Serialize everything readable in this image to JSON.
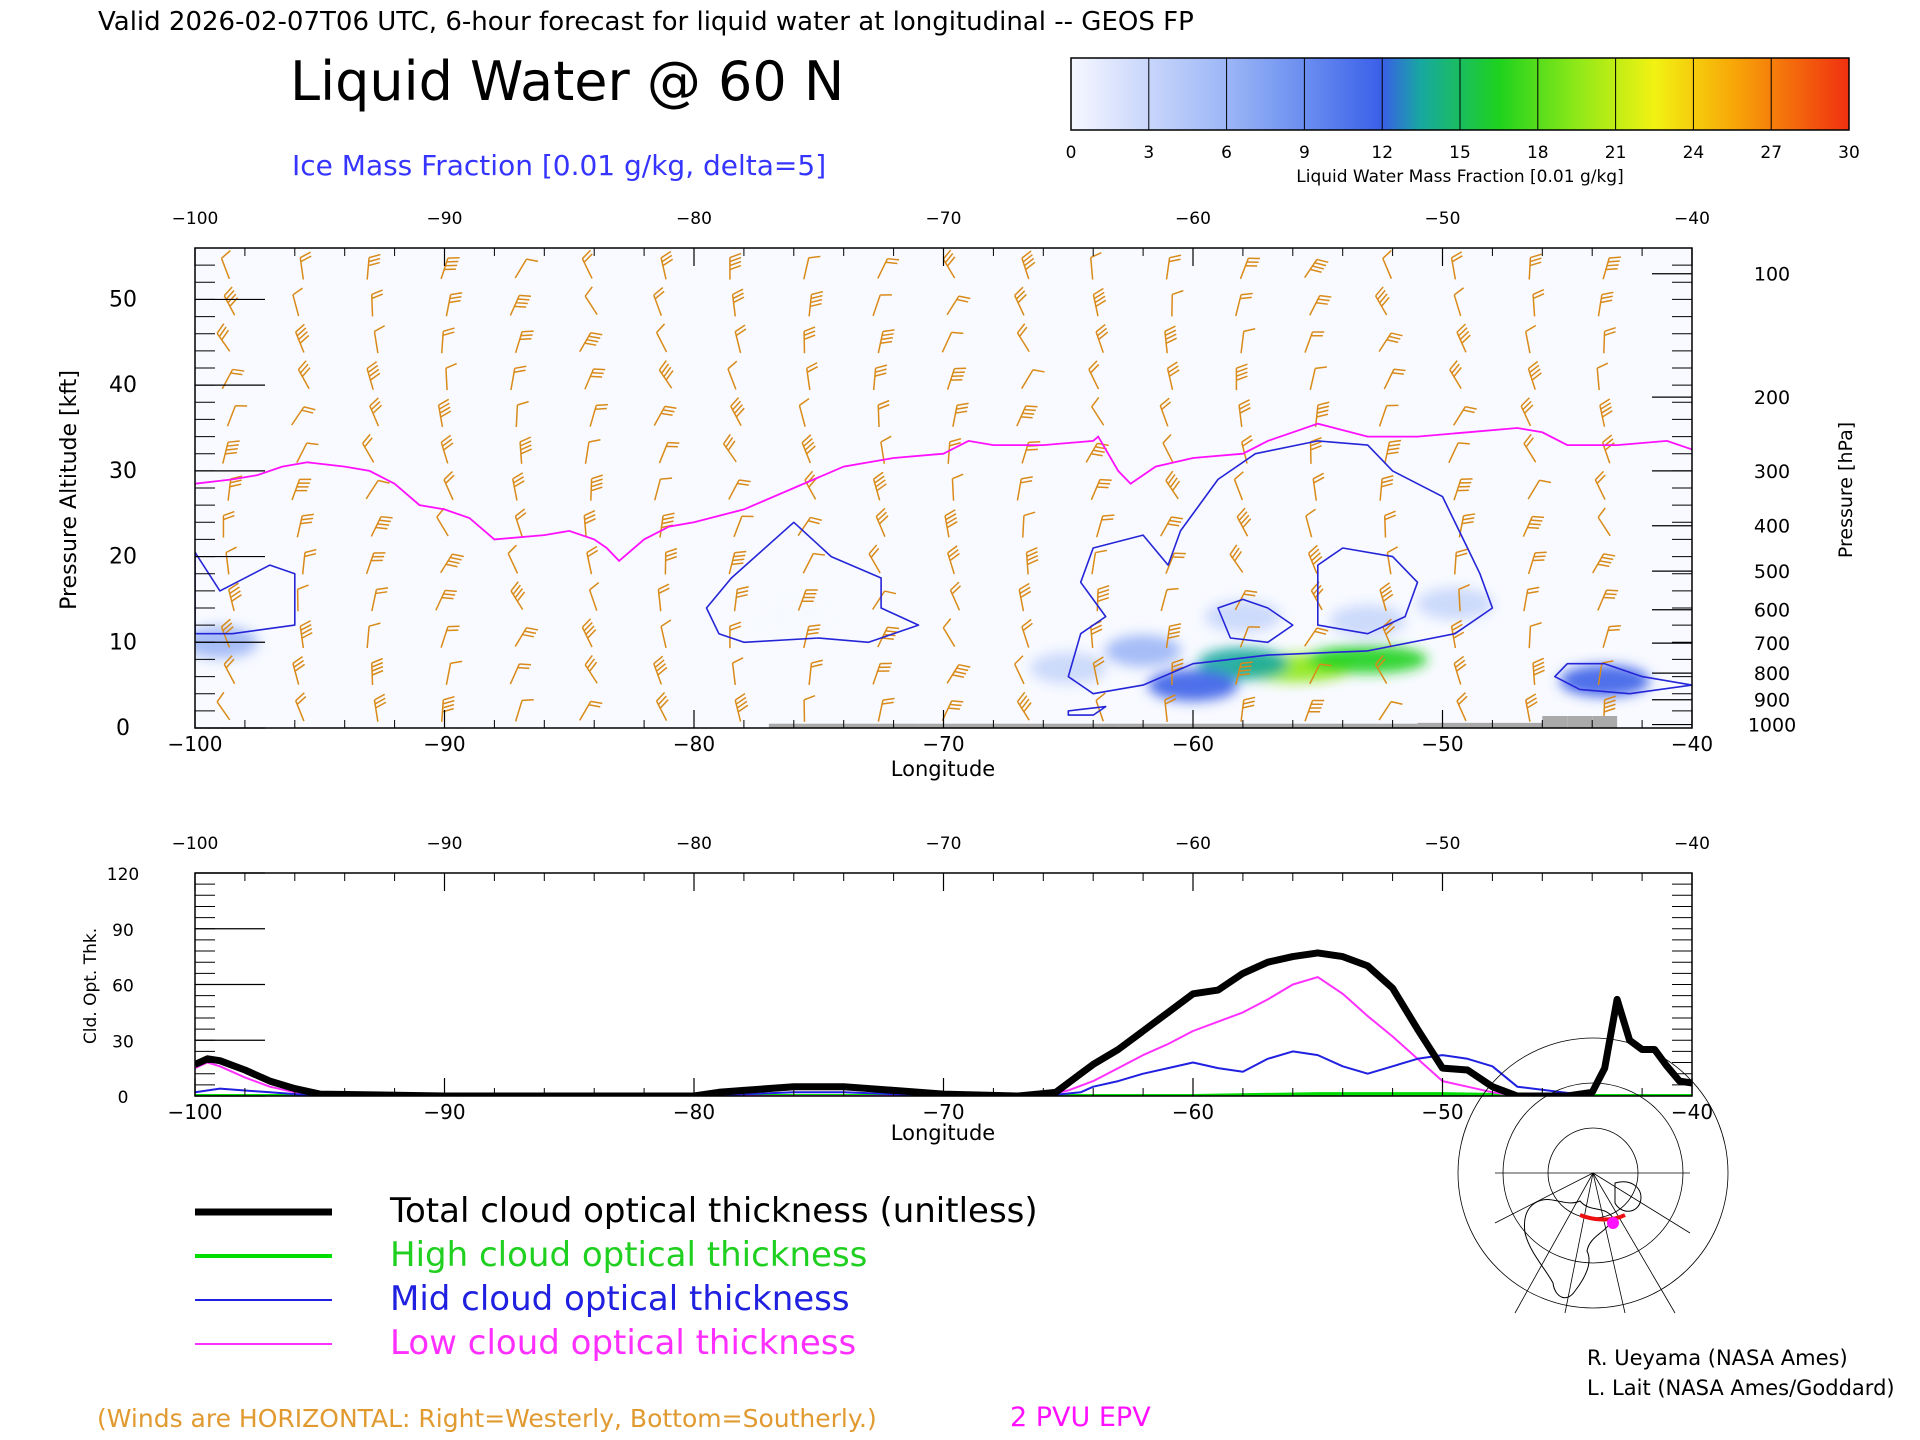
{
  "header": {
    "valid_line": "Valid 2026-02-07T06 UTC, 6-hour forecast for liquid water at longitudinal -- GEOS FP",
    "title": "Liquid Water @ 60 N",
    "ice_label": "Ice Mass Fraction [0.01 g/kg, delta=5]"
  },
  "colorbar": {
    "ticks": [
      "0",
      "3",
      "6",
      "9",
      "12",
      "15",
      "18",
      "21",
      "24",
      "27",
      "30"
    ],
    "label": "Liquid Water Mass Fraction [0.01 g/kg]",
    "colors": [
      "#f6f8ff",
      "#c8d6fb",
      "#9cb6f6",
      "#6a8ef0",
      "#3a5fe8",
      "#17a8a0",
      "#1ed21e",
      "#8ee818",
      "#f2f212",
      "#f8a808",
      "#f03010"
    ]
  },
  "footer": {
    "winds_note": "(Winds are HORIZONTAL: Right=Westerly, Bottom=Southerly.)",
    "epv_label": "2 PVU EPV"
  },
  "credits": [
    "R. Ueyama (NASA Ames)",
    "L. Lait (NASA Ames/Goddard)"
  ],
  "legend": [
    {
      "label": "Total cloud optical thickness (unitless)",
      "color": "#000000",
      "width": 7
    },
    {
      "label": "High cloud optical thickness",
      "color": "#00dd00",
      "width": 4
    },
    {
      "label": "Mid cloud optical thickness",
      "color": "#2020e0",
      "width": 2
    },
    {
      "label": "Low cloud optical thickness",
      "color": "#ff30ff",
      "width": 2
    }
  ],
  "chart_data": [
    {
      "type": "heatmap",
      "title": "Liquid Water @ 60 N",
      "xlabel": "Longitude",
      "ylabel": "Pressure Altitude [kft]",
      "y2label": "Pressure [hPa]",
      "xlim": [
        -100,
        -40
      ],
      "ylim": [
        0,
        56
      ],
      "xticks": [
        -100,
        -90,
        -80,
        -70,
        -60,
        -50,
        -40
      ],
      "yticks": [
        0,
        10,
        20,
        30,
        40,
        50
      ],
      "pressure_ticks": [
        {
          "hPa": 100,
          "kft": 53.0
        },
        {
          "hPa": 200,
          "kft": 38.6
        },
        {
          "hPa": 300,
          "kft": 30.0
        },
        {
          "hPa": 400,
          "kft": 23.6
        },
        {
          "hPa": 500,
          "kft": 18.3
        },
        {
          "hPa": 600,
          "kft": 13.8
        },
        {
          "hPa": 700,
          "kft": 9.9
        },
        {
          "hPa": 800,
          "kft": 6.4
        },
        {
          "hPa": 900,
          "kft": 3.3
        },
        {
          "hPa": 1000,
          "kft": 0.4
        }
      ],
      "liquid_water_blobs": [
        {
          "lon": -56.0,
          "kft": 7.0,
          "value": 22
        },
        {
          "lon": -53.0,
          "kft": 8.0,
          "value": 17
        },
        {
          "lon": -58.0,
          "kft": 7.5,
          "value": 15
        },
        {
          "lon": -60.0,
          "kft": 5.0,
          "value": 11
        },
        {
          "lon": -62.0,
          "kft": 9.0,
          "value": 6
        },
        {
          "lon": -58.0,
          "kft": 13.0,
          "value": 4
        },
        {
          "lon": -53.0,
          "kft": 12.5,
          "value": 4
        },
        {
          "lon": -49.5,
          "kft": 14.5,
          "value": 2
        },
        {
          "lon": -43.5,
          "kft": 5.5,
          "value": 13
        },
        {
          "lon": -99.0,
          "kft": 10.0,
          "value": 5
        },
        {
          "lon": -76.0,
          "kft": 13.0,
          "value": 1
        },
        {
          "lon": -65.0,
          "kft": 7.0,
          "value": 2
        }
      ],
      "ice_contours": [
        {
          "level": 5,
          "points": [
            [
              -100,
              20.5
            ],
            [
              -99,
              16
            ],
            [
              -97,
              19
            ],
            [
              -96,
              18
            ],
            [
              -96,
              12
            ],
            [
              -98.5,
              11
            ],
            [
              -100,
              11
            ]
          ]
        },
        {
          "level": 5,
          "points": [
            [
              -79.5,
              14
            ],
            [
              -78.5,
              17.5
            ],
            [
              -76,
              24
            ],
            [
              -74.5,
              20
            ],
            [
              -72.5,
              17.5
            ],
            [
              -72.5,
              14
            ],
            [
              -71,
              12
            ],
            [
              -73,
              10
            ],
            [
              -75,
              10.5
            ],
            [
              -78,
              10
            ],
            [
              -79,
              11
            ]
          ]
        },
        {
          "level": 5,
          "points": [
            [
              -64.5,
              17
            ],
            [
              -64,
              21
            ],
            [
              -62,
              22.5
            ],
            [
              -61,
              19
            ],
            [
              -60.5,
              23
            ],
            [
              -59,
              29
            ],
            [
              -57.5,
              32
            ],
            [
              -55,
              33.5
            ],
            [
              -53,
              33
            ],
            [
              -52,
              30
            ],
            [
              -50,
              27
            ],
            [
              -49,
              21
            ],
            [
              -48.5,
              18
            ],
            [
              -48,
              14
            ],
            [
              -49.5,
              11
            ],
            [
              -53,
              9
            ],
            [
              -57,
              8.5
            ],
            [
              -60,
              7.5
            ],
            [
              -62,
              5
            ],
            [
              -64,
              4
            ],
            [
              -65,
              6
            ],
            [
              -64.5,
              11
            ],
            [
              -63.5,
              13
            ]
          ]
        },
        {
          "level": 10,
          "points": [
            [
              -59,
              14
            ],
            [
              -58,
              15
            ],
            [
              -57,
              14
            ],
            [
              -56,
              12
            ],
            [
              -57,
              10
            ],
            [
              -58.5,
              10.5
            ]
          ]
        },
        {
          "level": 10,
          "points": [
            [
              -55,
              19
            ],
            [
              -54,
              21
            ],
            [
              -52,
              20
            ],
            [
              -51,
              17
            ],
            [
              -51.5,
              13
            ],
            [
              -53,
              11
            ],
            [
              -55,
              12
            ]
          ]
        },
        {
          "level": 5,
          "points": [
            [
              -45.5,
              6
            ],
            [
              -45,
              7.5
            ],
            [
              -43.5,
              7.5
            ],
            [
              -42,
              6
            ],
            [
              -40,
              5
            ],
            [
              -42.5,
              4
            ],
            [
              -44.5,
              4.5
            ]
          ]
        },
        {
          "level": 5,
          "points": [
            [
              -65,
              2
            ],
            [
              -63.5,
              2.5
            ],
            [
              -64,
              1.5
            ],
            [
              -65,
              1.5
            ]
          ]
        }
      ],
      "tropopause_epv_kft": [
        [
          -100,
          28.5
        ],
        [
          -98.5,
          29
        ],
        [
          -97.5,
          29.5
        ],
        [
          -96.5,
          30.5
        ],
        [
          -95.5,
          31
        ],
        [
          -94,
          30.5
        ],
        [
          -93,
          30
        ],
        [
          -92,
          28.5
        ],
        [
          -91,
          26
        ],
        [
          -90,
          25.5
        ],
        [
          -89,
          24.5
        ],
        [
          -88,
          22
        ],
        [
          -86,
          22.5
        ],
        [
          -85,
          23
        ],
        [
          -84,
          22
        ],
        [
          -83.5,
          21
        ],
        [
          -83,
          19.5
        ],
        [
          -82,
          22
        ],
        [
          -81,
          23.5
        ],
        [
          -80,
          24
        ],
        [
          -78,
          25.5
        ],
        [
          -76,
          28
        ],
        [
          -74,
          30.5
        ],
        [
          -72,
          31.5
        ],
        [
          -70,
          32
        ],
        [
          -69,
          33.5
        ],
        [
          -68,
          33
        ],
        [
          -66,
          33
        ],
        [
          -64,
          33.5
        ],
        [
          -63.8,
          34
        ],
        [
          -63,
          30
        ],
        [
          -62.5,
          28.5
        ],
        [
          -61.5,
          30.5
        ],
        [
          -60,
          31.5
        ],
        [
          -58,
          32
        ],
        [
          -57,
          33.5
        ],
        [
          -55,
          35.5
        ],
        [
          -53,
          34
        ],
        [
          -51,
          34
        ],
        [
          -49,
          34.5
        ],
        [
          -47,
          35
        ],
        [
          -46,
          34.5
        ],
        [
          -45,
          33
        ],
        [
          -43,
          33
        ],
        [
          -41,
          33.5
        ],
        [
          -40,
          32.5
        ]
      ],
      "surface_kft": [
        [
          -77,
          0.5
        ],
        [
          -71,
          0.5
        ],
        [
          -66,
          0.5
        ],
        [
          -64,
          0.5
        ],
        [
          -63,
          0.3
        ],
        [
          -60,
          0.5
        ],
        [
          -51,
          0.5
        ],
        [
          -46,
          0.6
        ],
        [
          -45,
          1.4
        ],
        [
          -44,
          1.4
        ],
        [
          -43,
          0.6
        ]
      ]
    },
    {
      "type": "line",
      "xlabel": "Longitude",
      "ylabel": "Cld. Opt. Thk.",
      "xlim": [
        -100,
        -40
      ],
      "ylim": [
        0,
        120
      ],
      "xticks": [
        -100,
        -90,
        -80,
        -70,
        -60,
        -50,
        -40
      ],
      "yticks": [
        0,
        30,
        60,
        90,
        120
      ],
      "series": [
        {
          "name": "Total cloud optical thickness (unitless)",
          "x": [
            -100,
            -99.5,
            -99,
            -98,
            -97,
            -96,
            -95,
            -90,
            -80,
            -79,
            -78,
            -76,
            -74,
            -72,
            -70,
            -67,
            -65.5,
            -64.5,
            -64,
            -63,
            -62,
            -61,
            -60,
            -59,
            -58,
            -57,
            -56,
            -55,
            -54,
            -53,
            -52,
            -51,
            -50,
            -49,
            -48,
            -47,
            -45,
            -44,
            -43.5,
            -43,
            -42.5,
            -42,
            -41.5,
            -41,
            -40.5,
            -40
          ],
          "y": [
            17,
            20,
            19,
            14,
            8,
            4,
            1,
            0,
            0,
            2,
            3,
            5,
            5,
            3,
            1,
            0,
            2,
            12,
            17,
            25,
            35,
            45,
            55,
            57,
            66,
            72,
            75,
            77,
            75,
            70,
            58,
            36,
            15,
            14,
            5,
            0,
            0,
            2,
            15,
            52,
            30,
            25,
            25,
            16,
            8,
            7
          ]
        },
        {
          "name": "High cloud optical thickness",
          "x": [
            -100,
            -90,
            -80,
            -70,
            -60,
            -55,
            -50,
            -45,
            -40
          ],
          "y": [
            0,
            0,
            0,
            0,
            0,
            1,
            1,
            0,
            0
          ]
        },
        {
          "name": "Mid cloud optical thickness",
          "x": [
            -100,
            -99,
            -97,
            -95,
            -90,
            -80,
            -76,
            -74,
            -70,
            -66,
            -64.5,
            -64,
            -63,
            -62,
            -61,
            -60,
            -59,
            -58,
            -57,
            -56,
            -55,
            -54,
            -53,
            -52,
            -51,
            -50,
            -49,
            -48,
            -47,
            -44,
            -43.5,
            -43,
            -42.5,
            -42,
            -41.5,
            -41,
            -40.5,
            -40
          ],
          "y": [
            2,
            4,
            2,
            0,
            0,
            0,
            2,
            2,
            0,
            0,
            2,
            5,
            8,
            12,
            15,
            18,
            15,
            13,
            20,
            24,
            22,
            16,
            12,
            16,
            20,
            22,
            20,
            16,
            5,
            0,
            15,
            52,
            30,
            25,
            25,
            16,
            8,
            7
          ]
        },
        {
          "name": "Low cloud optical thickness",
          "x": [
            -100,
            -99.5,
            -99,
            -98,
            -97,
            -96,
            -95,
            -90,
            -80,
            -70,
            -66,
            -65,
            -64,
            -63,
            -62,
            -61,
            -60,
            -59,
            -58,
            -57,
            -56,
            -55,
            -54,
            -53,
            -52,
            -51,
            -50,
            -49,
            -48,
            -47,
            -44,
            -43.5,
            -43,
            -42.5,
            -42,
            -41.5,
            -41,
            -40.5,
            -40
          ],
          "y": [
            15,
            18,
            16,
            10,
            5,
            2,
            0,
            0,
            0,
            0,
            0,
            3,
            8,
            15,
            22,
            28,
            35,
            40,
            45,
            52,
            60,
            64,
            55,
            43,
            32,
            20,
            8,
            5,
            2,
            0,
            0,
            15,
            52,
            30,
            25,
            25,
            16,
            8,
            7
          ]
        }
      ]
    }
  ]
}
